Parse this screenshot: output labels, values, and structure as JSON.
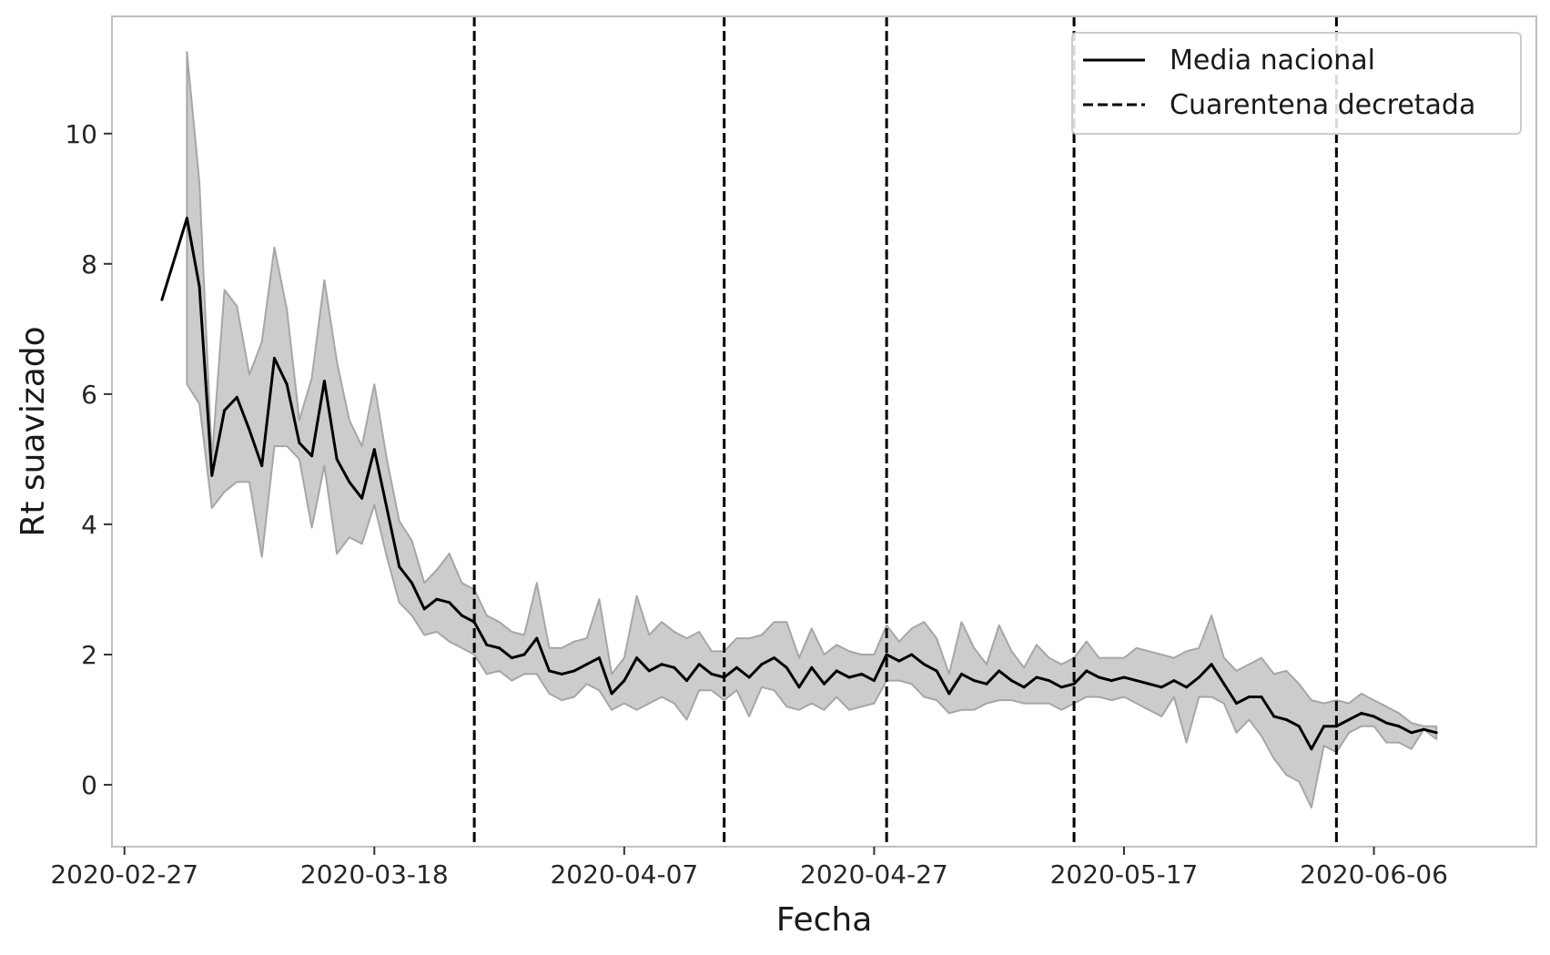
{
  "chart_data": {
    "type": "line",
    "xlabel": "Fecha",
    "ylabel": "Rt suavizado",
    "x_start_date": "2020-02-27",
    "x_ticks": [
      "2020-02-27",
      "2020-03-18",
      "2020-04-07",
      "2020-04-27",
      "2020-05-17",
      "2020-06-06"
    ],
    "y_ticks": [
      0,
      2,
      4,
      6,
      8,
      10
    ],
    "xlim": [
      "2020-02-26",
      "2020-06-19"
    ],
    "ylim": [
      -0.95,
      11.8
    ],
    "grid": false,
    "legend_position": "top-right",
    "legend": [
      {
        "label": "Media nacional",
        "style": "solid"
      },
      {
        "label": "Cuarentena decretada",
        "style": "dashed"
      }
    ],
    "colors": {
      "line": "#000000",
      "band": "#cccccc",
      "band_edge": "#a6a6a6",
      "frame": "#bfbfbf"
    },
    "series": [
      {
        "name": "Media nacional",
        "start_date": "2020-03-01",
        "values": [
          7.45,
          null,
          8.7,
          7.65,
          4.75,
          5.75,
          5.95,
          5.45,
          4.9,
          6.55,
          6.15,
          5.25,
          5.05,
          6.2,
          5.0,
          4.65,
          4.4,
          5.15,
          4.25,
          3.35,
          3.1,
          2.7,
          2.85,
          2.8,
          2.6,
          2.5,
          2.15,
          2.1,
          1.95,
          2.0,
          2.25,
          1.75,
          1.7,
          1.75,
          1.85,
          1.95,
          1.4,
          1.6,
          1.95,
          1.75,
          1.85,
          1.8,
          1.6,
          1.85,
          1.7,
          1.65,
          1.8,
          1.65,
          1.85,
          1.95,
          1.8,
          1.5,
          1.8,
          1.55,
          1.75,
          1.65,
          1.7,
          1.6,
          2.0,
          1.9,
          2.0,
          1.85,
          1.75,
          1.4,
          1.7,
          1.6,
          1.55,
          1.75,
          1.6,
          1.5,
          1.65,
          1.6,
          1.5,
          1.55,
          1.75,
          1.65,
          1.6,
          1.65,
          1.6,
          1.55,
          1.5,
          1.6,
          1.5,
          1.65,
          1.85,
          1.55,
          1.25,
          1.35,
          1.35,
          1.05,
          1.0,
          0.9,
          0.55,
          0.9,
          0.9,
          1.0,
          1.1,
          1.05,
          0.95,
          0.9,
          0.8,
          0.85,
          0.8
        ],
        "lower": [
          null,
          null,
          6.15,
          5.85,
          4.25,
          4.5,
          4.65,
          4.65,
          3.5,
          5.2,
          5.2,
          5.0,
          3.95,
          4.9,
          3.55,
          3.8,
          3.7,
          4.3,
          3.5,
          2.8,
          2.6,
          2.3,
          2.35,
          2.2,
          2.1,
          2.0,
          1.7,
          1.75,
          1.6,
          1.7,
          1.7,
          1.4,
          1.3,
          1.35,
          1.55,
          1.45,
          1.15,
          1.25,
          1.15,
          1.25,
          1.35,
          1.25,
          1.0,
          1.45,
          1.45,
          1.3,
          1.45,
          1.05,
          1.5,
          1.45,
          1.2,
          1.15,
          1.25,
          1.15,
          1.35,
          1.15,
          1.2,
          1.25,
          1.6,
          1.6,
          1.55,
          1.35,
          1.3,
          1.1,
          1.15,
          1.15,
          1.25,
          1.3,
          1.3,
          1.25,
          1.25,
          1.25,
          1.15,
          1.25,
          1.35,
          1.35,
          1.3,
          1.35,
          1.25,
          1.15,
          1.05,
          1.35,
          0.65,
          1.35,
          1.35,
          1.25,
          0.8,
          1.0,
          0.75,
          0.4,
          0.15,
          0.05,
          -0.35,
          0.6,
          0.5,
          0.8,
          0.9,
          0.9,
          0.65,
          0.65,
          0.55,
          0.85,
          0.7
        ],
        "upper": [
          null,
          null,
          11.25,
          9.25,
          5.0,
          7.6,
          7.35,
          6.3,
          6.8,
          8.25,
          7.3,
          5.6,
          6.25,
          7.75,
          6.5,
          5.6,
          5.2,
          6.15,
          5.0,
          4.05,
          3.75,
          3.1,
          3.3,
          3.55,
          3.1,
          3.0,
          2.6,
          2.5,
          2.35,
          2.3,
          3.1,
          2.1,
          2.1,
          2.2,
          2.25,
          2.85,
          1.7,
          1.95,
          2.9,
          2.3,
          2.5,
          2.35,
          2.25,
          2.35,
          2.05,
          2.05,
          2.25,
          2.25,
          2.3,
          2.5,
          2.5,
          1.95,
          2.4,
          2.0,
          2.15,
          2.05,
          2.0,
          2.0,
          2.45,
          2.2,
          2.4,
          2.5,
          2.25,
          1.7,
          2.5,
          2.1,
          1.85,
          2.45,
          2.05,
          1.8,
          2.15,
          1.95,
          1.85,
          1.95,
          2.2,
          1.95,
          1.95,
          1.95,
          2.1,
          2.05,
          2.0,
          1.95,
          2.05,
          2.1,
          2.6,
          1.95,
          1.75,
          1.85,
          1.95,
          1.7,
          1.75,
          1.55,
          1.3,
          1.25,
          1.3,
          1.25,
          1.4,
          1.3,
          1.2,
          1.1,
          0.95,
          0.9,
          0.9
        ]
      }
    ],
    "quarantine_dates": [
      "2020-03-26",
      "2020-04-15",
      "2020-04-28",
      "2020-05-13",
      "2020-06-03"
    ]
  }
}
